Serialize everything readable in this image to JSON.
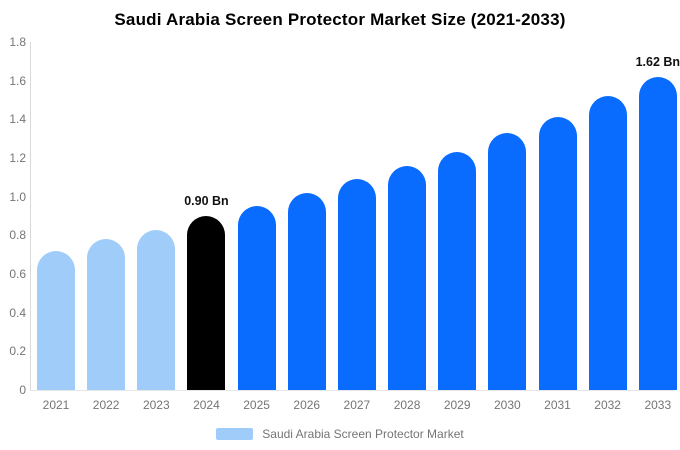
{
  "chart_data": {
    "type": "bar",
    "title": "Saudi Arabia Screen Protector Market Size (2021-2033)",
    "xlabel": "",
    "ylabel": "",
    "unit": "Bn",
    "ylim": [
      0,
      1.8
    ],
    "ytick_step": 0.2,
    "yticks": [
      "0",
      "0.2",
      "0.4",
      "0.6",
      "0.8",
      "1.0",
      "1.2",
      "1.4",
      "1.6",
      "1.8"
    ],
    "grid": false,
    "legend_position": "bottom",
    "categories": [
      "2021",
      "2022",
      "2023",
      "2024",
      "2025",
      "2026",
      "2027",
      "2028",
      "2029",
      "2030",
      "2031",
      "2032",
      "2033"
    ],
    "points": [
      {
        "year": "2021",
        "value": 0.72,
        "color": "#a0ccfa",
        "label": ""
      },
      {
        "year": "2022",
        "value": 0.78,
        "color": "#a0ccfa",
        "label": ""
      },
      {
        "year": "2023",
        "value": 0.83,
        "color": "#a0ccfa",
        "label": ""
      },
      {
        "year": "2024",
        "value": 0.9,
        "color": "#000000",
        "label": "0.90 Bn"
      },
      {
        "year": "2025",
        "value": 0.95,
        "color": "#0a6cff",
        "label": ""
      },
      {
        "year": "2026",
        "value": 1.02,
        "color": "#0a6cff",
        "label": ""
      },
      {
        "year": "2027",
        "value": 1.09,
        "color": "#0a6cff",
        "label": ""
      },
      {
        "year": "2028",
        "value": 1.16,
        "color": "#0a6cff",
        "label": ""
      },
      {
        "year": "2029",
        "value": 1.23,
        "color": "#0a6cff",
        "label": ""
      },
      {
        "year": "2030",
        "value": 1.33,
        "color": "#0a6cff",
        "label": ""
      },
      {
        "year": "2031",
        "value": 1.41,
        "color": "#0a6cff",
        "label": ""
      },
      {
        "year": "2032",
        "value": 1.52,
        "color": "#0a6cff",
        "label": ""
      },
      {
        "year": "2033",
        "value": 1.62,
        "color": "#0a6cff",
        "label": "1.62 Bn"
      }
    ],
    "palette": {
      "historical": "#a0ccfa",
      "base_year": "#000000",
      "forecast": "#0a6cff"
    }
  },
  "legend": {
    "label": "Saudi Arabia Screen Protector Market",
    "color": "#a0ccfa"
  },
  "text_colors": {
    "title": "#000000",
    "axis_labels": "#757575",
    "annotations": "#111111"
  }
}
